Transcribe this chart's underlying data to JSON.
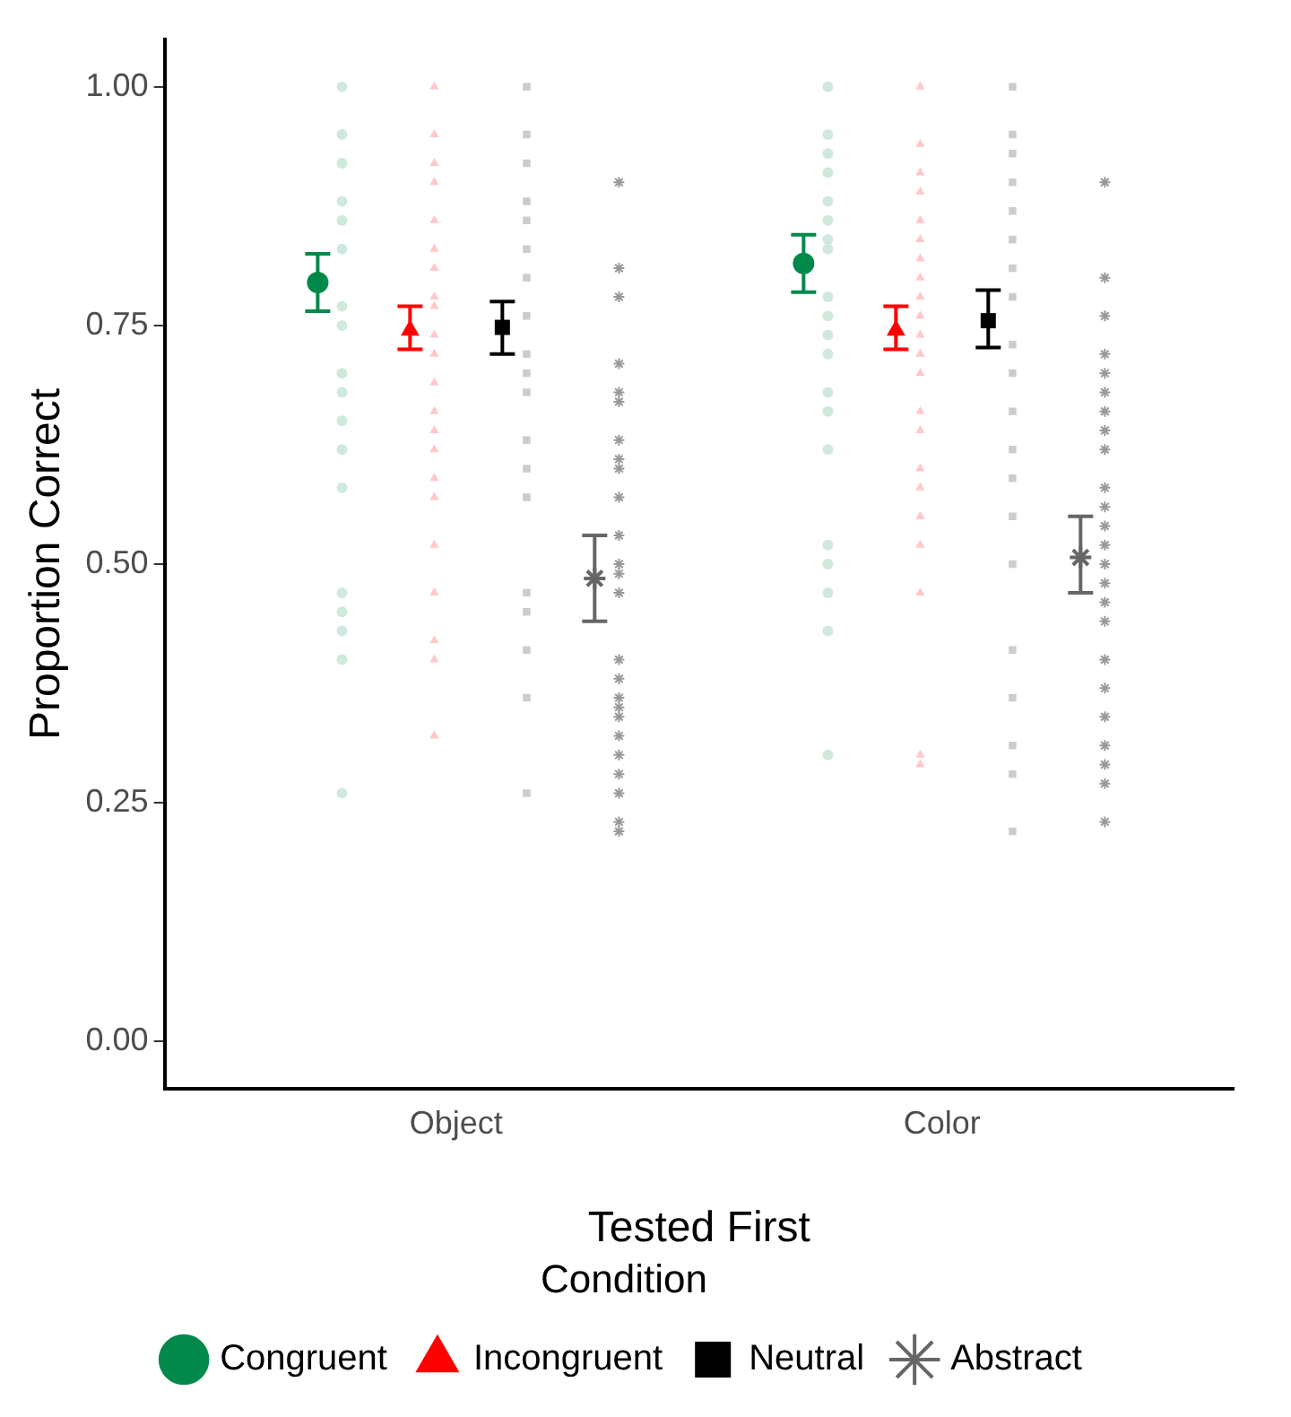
{
  "chart_data": {
    "type": "scatter",
    "xlabel": "Tested First",
    "ylabel": "Proportion Correct",
    "legend_title": "Condition",
    "legend": "bottom",
    "grid": false,
    "categories": [
      "Object",
      "Color"
    ],
    "ylim": [
      -0.05,
      1.05
    ],
    "yticks": [
      {
        "value": 0,
        "label": "0.00"
      },
      {
        "value": 0.25,
        "label": "0.25"
      },
      {
        "value": 0.5,
        "label": "0.50"
      },
      {
        "value": 0.75,
        "label": "0.75"
      },
      {
        "value": 1,
        "label": "1.00"
      }
    ],
    "series": [
      {
        "color": "#cfe9dc",
        "marker": "circle",
        "x": [
          "Object",
          "Object",
          "Object",
          "Object",
          "Object",
          "Object",
          "Object",
          "Object",
          "Object",
          "Object",
          "Object",
          "Object",
          "Object",
          "Object",
          "Object",
          "Object",
          "Object",
          "Object",
          "Color",
          "Color",
          "Color",
          "Color",
          "Color",
          "Color",
          "Color",
          "Color",
          "Color",
          "Color",
          "Color",
          "Color",
          "Color",
          "Color",
          "Color",
          "Color",
          "Color",
          "Color",
          "Color",
          "Color"
        ],
        "values": [
          1,
          0.95,
          0.92,
          0.88,
          0.86,
          0.83,
          0.77,
          0.75,
          0.7,
          0.68,
          0.65,
          0.62,
          0.58,
          0.47,
          0.45,
          0.43,
          0.4,
          0.26,
          1,
          0.95,
          0.93,
          0.91,
          0.88,
          0.86,
          0.84,
          0.83,
          0.78,
          0.76,
          0.74,
          0.72,
          0.68,
          0.66,
          0.62,
          0.52,
          0.5,
          0.47,
          0.43,
          0.3
        ]
      },
      {
        "color": "#ffc9c9",
        "marker": "triangle",
        "x": [
          "Object",
          "Object",
          "Object",
          "Object",
          "Object",
          "Object",
          "Object",
          "Object",
          "Object",
          "Object",
          "Object",
          "Object",
          "Object",
          "Object",
          "Object",
          "Object",
          "Object",
          "Object",
          "Object",
          "Object",
          "Object",
          "Object",
          "Color",
          "Color",
          "Color",
          "Color",
          "Color",
          "Color",
          "Color",
          "Color",
          "Color",
          "Color",
          "Color",
          "Color",
          "Color",
          "Color",
          "Color",
          "Color",
          "Color",
          "Color",
          "Color",
          "Color",
          "Color",
          "Color"
        ],
        "values": [
          1,
          0.95,
          0.92,
          0.9,
          0.86,
          0.83,
          0.81,
          0.78,
          0.77,
          0.74,
          0.72,
          0.69,
          0.66,
          0.64,
          0.62,
          0.59,
          0.57,
          0.52,
          0.47,
          0.42,
          0.4,
          0.32,
          1,
          0.94,
          0.91,
          0.89,
          0.86,
          0.84,
          0.82,
          0.8,
          0.78,
          0.76,
          0.74,
          0.72,
          0.7,
          0.66,
          0.64,
          0.6,
          0.58,
          0.55,
          0.52,
          0.47,
          0.3,
          0.29
        ]
      },
      {
        "color": "#cccccc",
        "marker": "square",
        "x": [
          "Object",
          "Object",
          "Object",
          "Object",
          "Object",
          "Object",
          "Object",
          "Object",
          "Object",
          "Object",
          "Object",
          "Object",
          "Object",
          "Object",
          "Object",
          "Object",
          "Object",
          "Object",
          "Object",
          "Color",
          "Color",
          "Color",
          "Color",
          "Color",
          "Color",
          "Color",
          "Color",
          "Color",
          "Color",
          "Color",
          "Color",
          "Color",
          "Color",
          "Color",
          "Color",
          "Color",
          "Color",
          "Color",
          "Color"
        ],
        "values": [
          1,
          0.95,
          0.92,
          0.88,
          0.86,
          0.83,
          0.8,
          0.76,
          0.72,
          0.7,
          0.68,
          0.63,
          0.6,
          0.57,
          0.47,
          0.45,
          0.41,
          0.36,
          0.26,
          1,
          0.95,
          0.93,
          0.9,
          0.87,
          0.84,
          0.81,
          0.78,
          0.73,
          0.7,
          0.66,
          0.62,
          0.59,
          0.55,
          0.5,
          0.41,
          0.36,
          0.31,
          0.28,
          0.22
        ]
      },
      {
        "color": "#999999",
        "marker": "cross",
        "x": [
          "Object",
          "Object",
          "Object",
          "Object",
          "Object",
          "Object",
          "Object",
          "Object",
          "Object",
          "Object",
          "Object",
          "Object",
          "Object",
          "Object",
          "Object",
          "Object",
          "Object",
          "Object",
          "Object",
          "Object",
          "Object",
          "Object",
          "Object",
          "Object",
          "Object",
          "Color",
          "Color",
          "Color",
          "Color",
          "Color",
          "Color",
          "Color",
          "Color",
          "Color",
          "Color",
          "Color",
          "Color",
          "Color",
          "Color",
          "Color",
          "Color",
          "Color",
          "Color",
          "Color",
          "Color",
          "Color",
          "Color",
          "Color",
          "Color"
        ],
        "values": [
          0.9,
          0.81,
          0.78,
          0.71,
          0.68,
          0.67,
          0.63,
          0.61,
          0.6,
          0.57,
          0.53,
          0.5,
          0.49,
          0.47,
          0.4,
          0.38,
          0.36,
          0.35,
          0.34,
          0.32,
          0.3,
          0.28,
          0.26,
          0.23,
          0.22,
          0.9,
          0.8,
          0.76,
          0.72,
          0.7,
          0.68,
          0.66,
          0.64,
          0.62,
          0.58,
          0.56,
          0.54,
          0.52,
          0.5,
          0.48,
          0.46,
          0.44,
          0.4,
          0.37,
          0.34,
          0.31,
          0.29,
          0.27,
          0.23
        ]
      },
      {
        "name": "Congruent",
        "color": "#00894a",
        "marker": "circle",
        "x": [
          "Object",
          "Color"
        ],
        "values": [
          0.795,
          0.815
        ],
        "errors": [
          [
            0.765,
            0.825
          ],
          [
            0.785,
            0.845
          ]
        ]
      },
      {
        "name": "Incongruent",
        "color": "#ff0000",
        "marker": "triangle",
        "x": [
          "Object",
          "Color"
        ],
        "values": [
          0.745,
          0.745
        ],
        "errors": [
          [
            0.725,
            0.77
          ],
          [
            0.725,
            0.77
          ]
        ]
      },
      {
        "name": "Neutral",
        "color": "#000000",
        "marker": "square",
        "x": [
          "Object",
          "Color"
        ],
        "values": [
          0.748,
          0.755
        ],
        "errors": [
          [
            0.72,
            0.775
          ],
          [
            0.727,
            0.787
          ]
        ]
      },
      {
        "name": "Abstract",
        "color": "#666666",
        "marker": "cross",
        "x": [
          "Object",
          "Color"
        ],
        "values": [
          0.485,
          0.507
        ],
        "errors": [
          [
            0.44,
            0.53
          ],
          [
            0.47,
            0.55
          ]
        ]
      }
    ]
  }
}
